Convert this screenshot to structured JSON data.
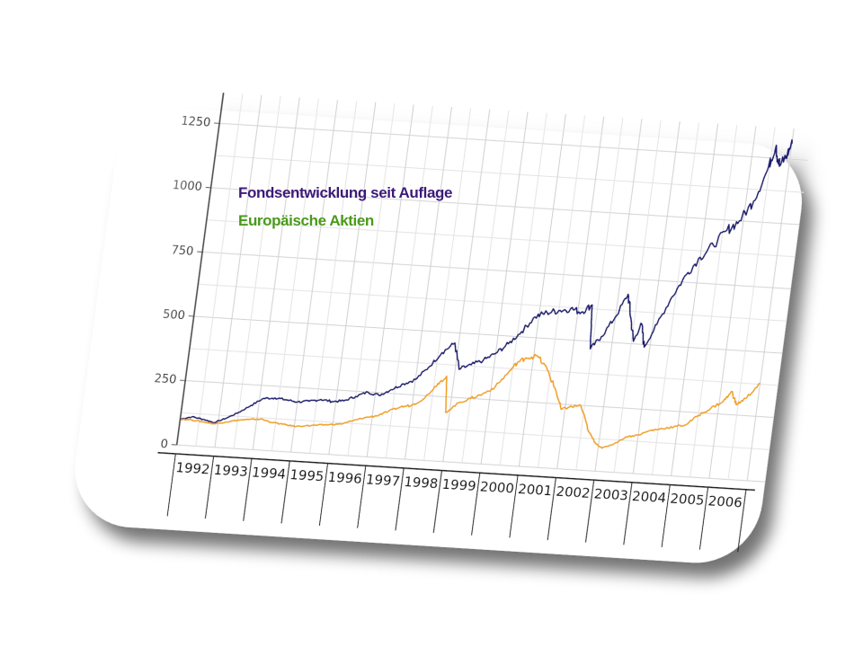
{
  "chart_data": {
    "type": "line",
    "title": "",
    "xlabel": "",
    "ylabel": "",
    "categories": [
      "1992",
      "1993",
      "1994",
      "1995",
      "1996",
      "1997",
      "1998",
      "1999",
      "2000",
      "2001",
      "2002",
      "2003",
      "2004",
      "2005",
      "2006"
    ],
    "y_ticks": [
      "0",
      "250",
      "500",
      "750",
      "1000",
      "1250"
    ],
    "ylim": [
      0,
      1300
    ],
    "xlim": [
      1992,
      2007
    ],
    "grid": true,
    "legend": "top-left",
    "series": [
      {
        "name": "Fondsentwicklung seit Auflage",
        "color": "#1c1c6e",
        "legend_color": "#3d1a78",
        "points": [
          [
            1992.0,
            100
          ],
          [
            1992.3,
            112
          ],
          [
            1992.6,
            105
          ],
          [
            1992.9,
            95
          ],
          [
            1993.2,
            115
          ],
          [
            1993.5,
            140
          ],
          [
            1993.8,
            170
          ],
          [
            1994.1,
            200
          ],
          [
            1994.4,
            205
          ],
          [
            1994.7,
            200
          ],
          [
            1995.0,
            195
          ],
          [
            1995.3,
            200
          ],
          [
            1995.6,
            210
          ],
          [
            1995.9,
            205
          ],
          [
            1996.2,
            210
          ],
          [
            1996.5,
            230
          ],
          [
            1996.8,
            250
          ],
          [
            1997.1,
            240
          ],
          [
            1997.4,
            265
          ],
          [
            1997.7,
            290
          ],
          [
            1998.0,
            310
          ],
          [
            1998.3,
            360
          ],
          [
            1998.6,
            420
          ],
          [
            1998.9,
            460
          ],
          [
            1999.1,
            360
          ],
          [
            1999.4,
            380
          ],
          [
            1999.7,
            400
          ],
          [
            2000.0,
            430
          ],
          [
            2000.3,
            470
          ],
          [
            2000.6,
            520
          ],
          [
            2000.9,
            580
          ],
          [
            2001.2,
            600
          ],
          [
            2001.5,
            610
          ],
          [
            2001.8,
            620
          ],
          [
            2002.1,
            610
          ],
          [
            2002.35,
            640
          ],
          [
            2002.45,
            470
          ],
          [
            2002.7,
            520
          ],
          [
            2003.0,
            600
          ],
          [
            2003.25,
            690
          ],
          [
            2003.4,
            600
          ],
          [
            2003.55,
            510
          ],
          [
            2003.7,
            580
          ],
          [
            2003.85,
            490
          ],
          [
            2004.1,
            580
          ],
          [
            2004.4,
            690
          ],
          [
            2004.7,
            780
          ],
          [
            2005.0,
            850
          ],
          [
            2005.3,
            900
          ],
          [
            2005.6,
            960
          ],
          [
            2005.9,
            1000
          ],
          [
            2006.2,
            1080
          ],
          [
            2006.45,
            1200
          ],
          [
            2006.6,
            1300
          ],
          [
            2006.75,
            1220
          ],
          [
            2006.9,
            1260
          ],
          [
            2007.0,
            1310
          ]
        ]
      },
      {
        "name": "Europäische Aktien",
        "color": "#f0a020",
        "legend_color": "#4a9a1a",
        "points": [
          [
            1992.0,
            100
          ],
          [
            1992.3,
            100
          ],
          [
            1992.6,
            95
          ],
          [
            1992.9,
            90
          ],
          [
            1993.2,
            100
          ],
          [
            1993.5,
            110
          ],
          [
            1993.8,
            115
          ],
          [
            1994.1,
            120
          ],
          [
            1994.4,
            110
          ],
          [
            1994.7,
            105
          ],
          [
            1995.0,
            100
          ],
          [
            1995.3,
            105
          ],
          [
            1995.6,
            110
          ],
          [
            1995.9,
            115
          ],
          [
            1996.2,
            120
          ],
          [
            1996.5,
            135
          ],
          [
            1996.8,
            150
          ],
          [
            1997.1,
            160
          ],
          [
            1997.4,
            180
          ],
          [
            1997.7,
            200
          ],
          [
            1998.0,
            210
          ],
          [
            1998.3,
            240
          ],
          [
            1998.6,
            300
          ],
          [
            1998.8,
            330
          ],
          [
            1998.9,
            190
          ],
          [
            1999.2,
            230
          ],
          [
            1999.5,
            250
          ],
          [
            1999.8,
            270
          ],
          [
            2000.1,
            300
          ],
          [
            2000.4,
            360
          ],
          [
            2000.6,
            400
          ],
          [
            2000.8,
            420
          ],
          [
            2001.1,
            430
          ],
          [
            2001.4,
            380
          ],
          [
            2001.7,
            300
          ],
          [
            2001.9,
            230
          ],
          [
            2002.1,
            240
          ],
          [
            2002.4,
            250
          ],
          [
            2002.7,
            150
          ],
          [
            2002.9,
            110
          ],
          [
            2003.1,
            90
          ],
          [
            2003.4,
            110
          ],
          [
            2003.7,
            140
          ],
          [
            2004.0,
            150
          ],
          [
            2004.3,
            170
          ],
          [
            2004.6,
            180
          ],
          [
            2004.9,
            190
          ],
          [
            2005.2,
            200
          ],
          [
            2005.5,
            240
          ],
          [
            2005.8,
            270
          ],
          [
            2006.1,
            300
          ],
          [
            2006.3,
            340
          ],
          [
            2006.45,
            290
          ],
          [
            2006.7,
            320
          ],
          [
            2007.0,
            380
          ]
        ]
      }
    ]
  }
}
